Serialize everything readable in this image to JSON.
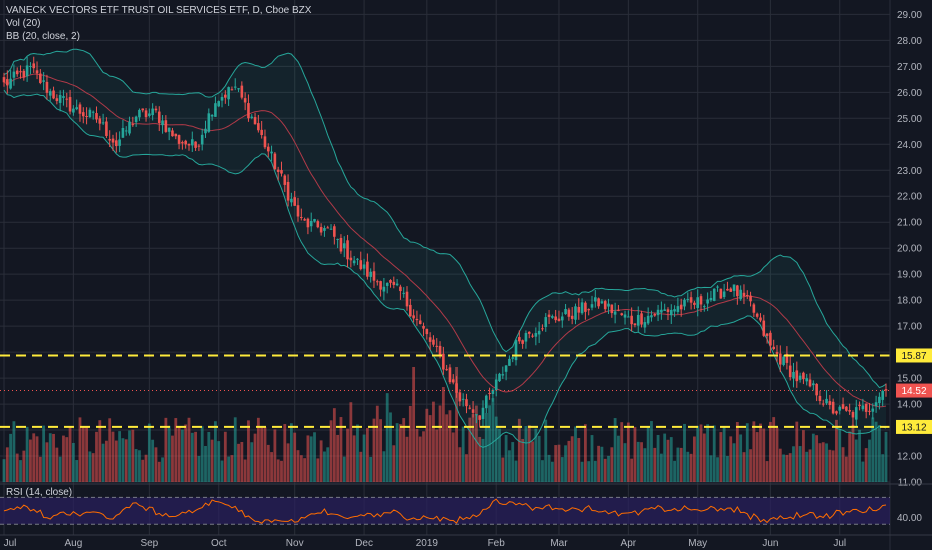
{
  "header": {
    "symbol_line": "VANECK VECTORS ETF TRUST OIL SERVICES ETF, D, Cboe BZX",
    "vol_line": "Vol (20)",
    "bb_line": "BB (20, close, 2)"
  },
  "rsi": {
    "label": "RSI (14, close)",
    "tick": "40.00"
  },
  "colors": {
    "background": "#131722",
    "up": "#26a69a",
    "down": "#ef5350",
    "bb_band": "#26a69a",
    "bb_basis": "#b03a48",
    "level_line": "#ffeb3b",
    "rsi_line": "#ff6d00",
    "rsi_fill": "#2a1f5e"
  },
  "chart_data": {
    "type": "candlestick",
    "title": "VANECK VECTORS ETF TRUST OIL SERVICES ETF, D, Cboe BZX",
    "y_ticks": [
      11,
      12,
      13,
      14,
      15,
      16,
      17,
      18,
      19,
      20,
      21,
      22,
      23,
      24,
      25,
      26,
      27,
      28,
      29
    ],
    "ylim": [
      11,
      29.4
    ],
    "x_labels": [
      "Jul",
      "Aug",
      "Sep",
      "Oct",
      "Nov",
      "Dec",
      "2019",
      "Feb",
      "Mar",
      "Apr",
      "May",
      "Jun",
      "Jul"
    ],
    "levels": [
      {
        "value": 15.87,
        "label": "15.87"
      },
      {
        "value": 13.12,
        "label": "13.12"
      }
    ],
    "last_price": {
      "value": 14.52,
      "label": "14.52"
    },
    "close_path": [
      [
        0,
        26.3
      ],
      [
        8,
        26.9
      ],
      [
        14,
        26.0
      ],
      [
        22,
        25.3
      ],
      [
        28,
        25.0
      ],
      [
        34,
        24.0
      ],
      [
        40,
        25.1
      ],
      [
        46,
        25.2
      ],
      [
        52,
        24.2
      ],
      [
        58,
        23.9
      ],
      [
        64,
        25.7
      ],
      [
        70,
        26.2
      ],
      [
        76,
        24.8
      ],
      [
        82,
        23.2
      ],
      [
        90,
        21.0
      ],
      [
        98,
        20.7
      ],
      [
        104,
        19.8
      ],
      [
        112,
        18.8
      ],
      [
        120,
        18.3
      ],
      [
        126,
        17.0
      ],
      [
        132,
        15.8
      ],
      [
        138,
        14.2
      ],
      [
        144,
        13.6
      ],
      [
        150,
        15.0
      ],
      [
        156,
        16.5
      ],
      [
        164,
        17.2
      ],
      [
        172,
        17.5
      ],
      [
        180,
        17.9
      ],
      [
        190,
        17.2
      ],
      [
        200,
        17.6
      ],
      [
        210,
        17.9
      ],
      [
        220,
        18.5
      ],
      [
        226,
        17.8
      ],
      [
        232,
        16.2
      ],
      [
        240,
        15.0
      ],
      [
        246,
        14.5
      ],
      [
        250,
        13.8
      ],
      [
        256,
        13.6
      ],
      [
        262,
        13.9
      ],
      [
        266,
        14.52
      ]
    ]
  }
}
